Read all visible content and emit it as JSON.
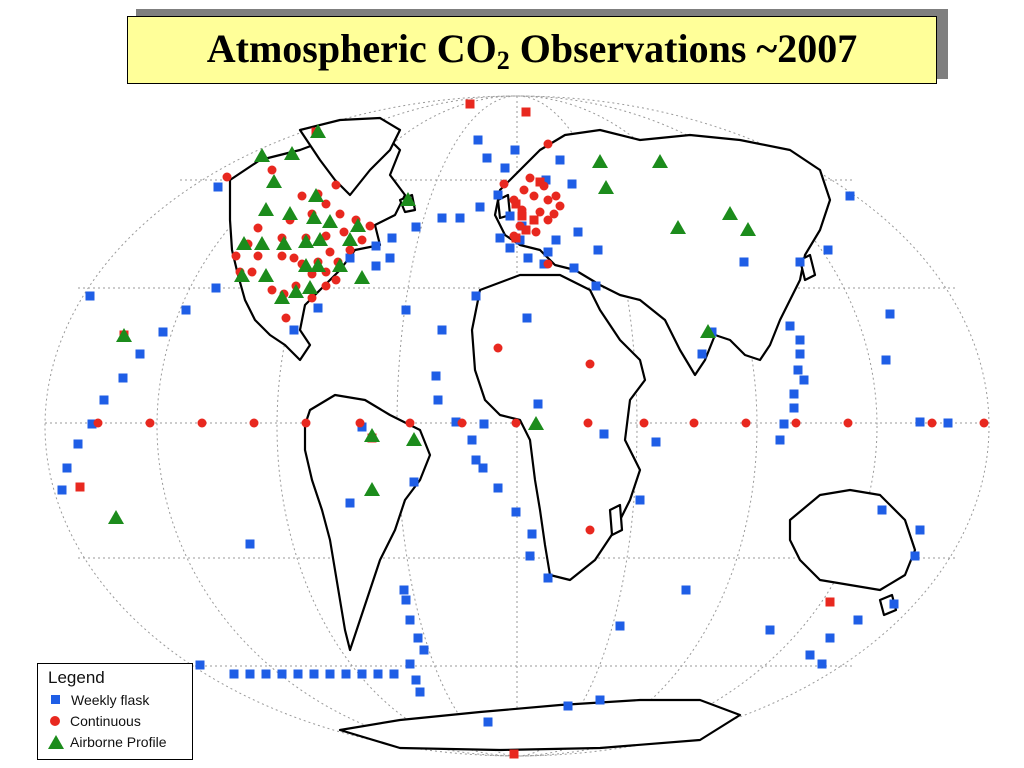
{
  "title": {
    "main": "Atmospheric CO",
    "subscript": "2",
    "rest": " Observations ~2007"
  },
  "legend": {
    "title": "Legend",
    "items": [
      {
        "label": "Weekly flask",
        "symbol": "square",
        "color": "#1f5ee6"
      },
      {
        "label": "Continuous",
        "symbol": "circle",
        "color": "#e8281f"
      },
      {
        "label": "Airborne Profile",
        "symbol": "triangle",
        "color": "#1c8c1c"
      }
    ]
  },
  "map": {
    "projection": "world map, oval graticule",
    "continent_outline_color": "#000000",
    "graticule_color": "#9a9a9a",
    "marker_count": {
      "weekly_flask": 160,
      "continuous": 95,
      "airborne_profile": 35
    }
  }
}
